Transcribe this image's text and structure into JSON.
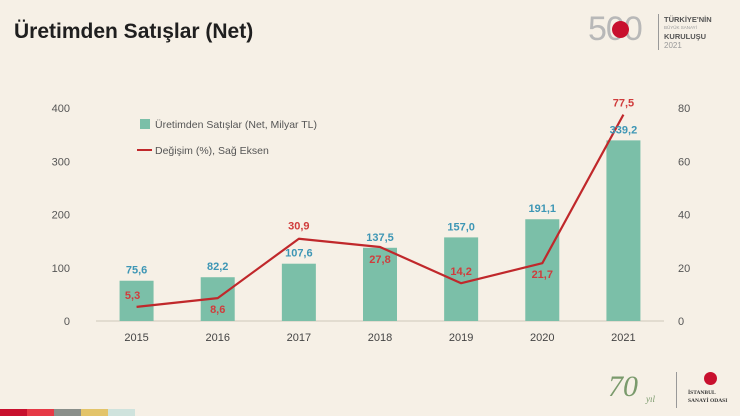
{
  "slide": {
    "title": "Üretimden Satışlar (Net)"
  },
  "logo_500": {
    "number": "500",
    "line1": "TÜRKİYE'NİN",
    "line2": "BÜYÜK SANAYİ",
    "line3": "KURULUŞU",
    "year": "2021"
  },
  "logo_70": {
    "number": "70",
    "script": "yıl",
    "line1": "İSTANBUL",
    "line2": "SANAYİ ODASI"
  },
  "stripe_colors": [
    "#c8102e",
    "#e63946",
    "#8a8f8a",
    "#e3c46a",
    "#cfe3dd"
  ],
  "chart_data": {
    "type": "bar",
    "categories": [
      "2015",
      "2016",
      "2017",
      "2018",
      "2019",
      "2020",
      "2021"
    ],
    "series": [
      {
        "name": "Üretimden Satışlar (Net, Milyar TL)",
        "type": "bar",
        "axis": "left",
        "color": "#7bbfa8",
        "label_color": "#3d96b5",
        "values": [
          75.6,
          82.2,
          107.6,
          137.5,
          157.0,
          191.1,
          339.2
        ],
        "labels": [
          "75,6",
          "82,2",
          "107,6",
          "137,5",
          "157,0",
          "191,1",
          "339,2"
        ]
      },
      {
        "name": "Değişim (%), Sağ Eksen",
        "type": "line",
        "axis": "right",
        "color": "#c0282b",
        "label_color": "#d03c3c",
        "values": [
          5.3,
          8.6,
          30.9,
          27.8,
          14.2,
          21.7,
          77.5
        ],
        "labels": [
          "5,3",
          "8,6",
          "30,9",
          "27,8",
          "14,2",
          "21,7",
          "77,5"
        ]
      }
    ],
    "y_left": {
      "range": [
        0,
        400
      ],
      "ticks": [
        "0",
        "100",
        "200",
        "300",
        "400"
      ]
    },
    "y_right": {
      "range": [
        0,
        80
      ],
      "ticks": [
        "0",
        "20",
        "40",
        "60",
        "80"
      ]
    },
    "grid": false,
    "legend": "top-left"
  }
}
